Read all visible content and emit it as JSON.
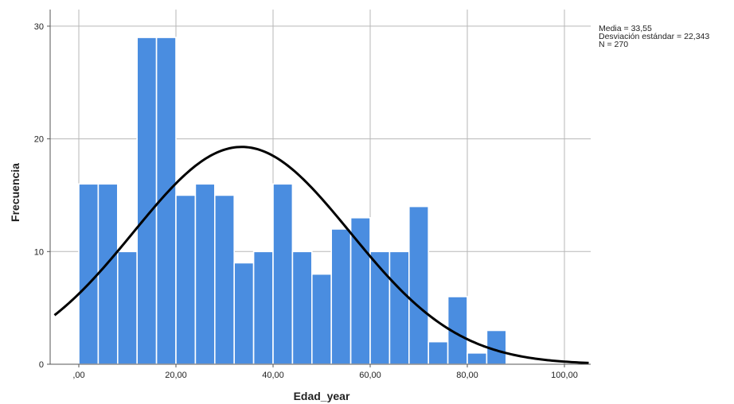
{
  "chart_data": {
    "type": "bar",
    "subtype": "histogram",
    "xlabel": "Edad_year",
    "ylabel": "Frecuencia",
    "xlim": [
      -5,
      105
    ],
    "ylim": [
      0,
      31
    ],
    "x_ticks": [
      {
        "value": 0,
        "label": ",00"
      },
      {
        "value": 20,
        "label": "20,00"
      },
      {
        "value": 40,
        "label": "40,00"
      },
      {
        "value": 60,
        "label": "60,00"
      },
      {
        "value": 80,
        "label": "80,00"
      },
      {
        "value": 100,
        "label": "100,00"
      }
    ],
    "y_ticks": [
      {
        "value": 0,
        "label": "0"
      },
      {
        "value": 10,
        "label": "10"
      },
      {
        "value": 20,
        "label": "20"
      },
      {
        "value": 30,
        "label": "30"
      }
    ],
    "bin_start": 0,
    "bin_width": 4,
    "frequencies": [
      16,
      16,
      10,
      29,
      29,
      15,
      16,
      15,
      9,
      10,
      16,
      10,
      8,
      12,
      13,
      10,
      10,
      14,
      2,
      6,
      1,
      3
    ],
    "bar_color": "#4a8de0",
    "curve_color": "#000000",
    "grid": true,
    "normal_curve": {
      "mean": 33.55,
      "sd": 22.343,
      "n": 270
    },
    "stats": [
      "Media = 33,55",
      "Desviación estándar = 22,343",
      "N = 270"
    ]
  }
}
